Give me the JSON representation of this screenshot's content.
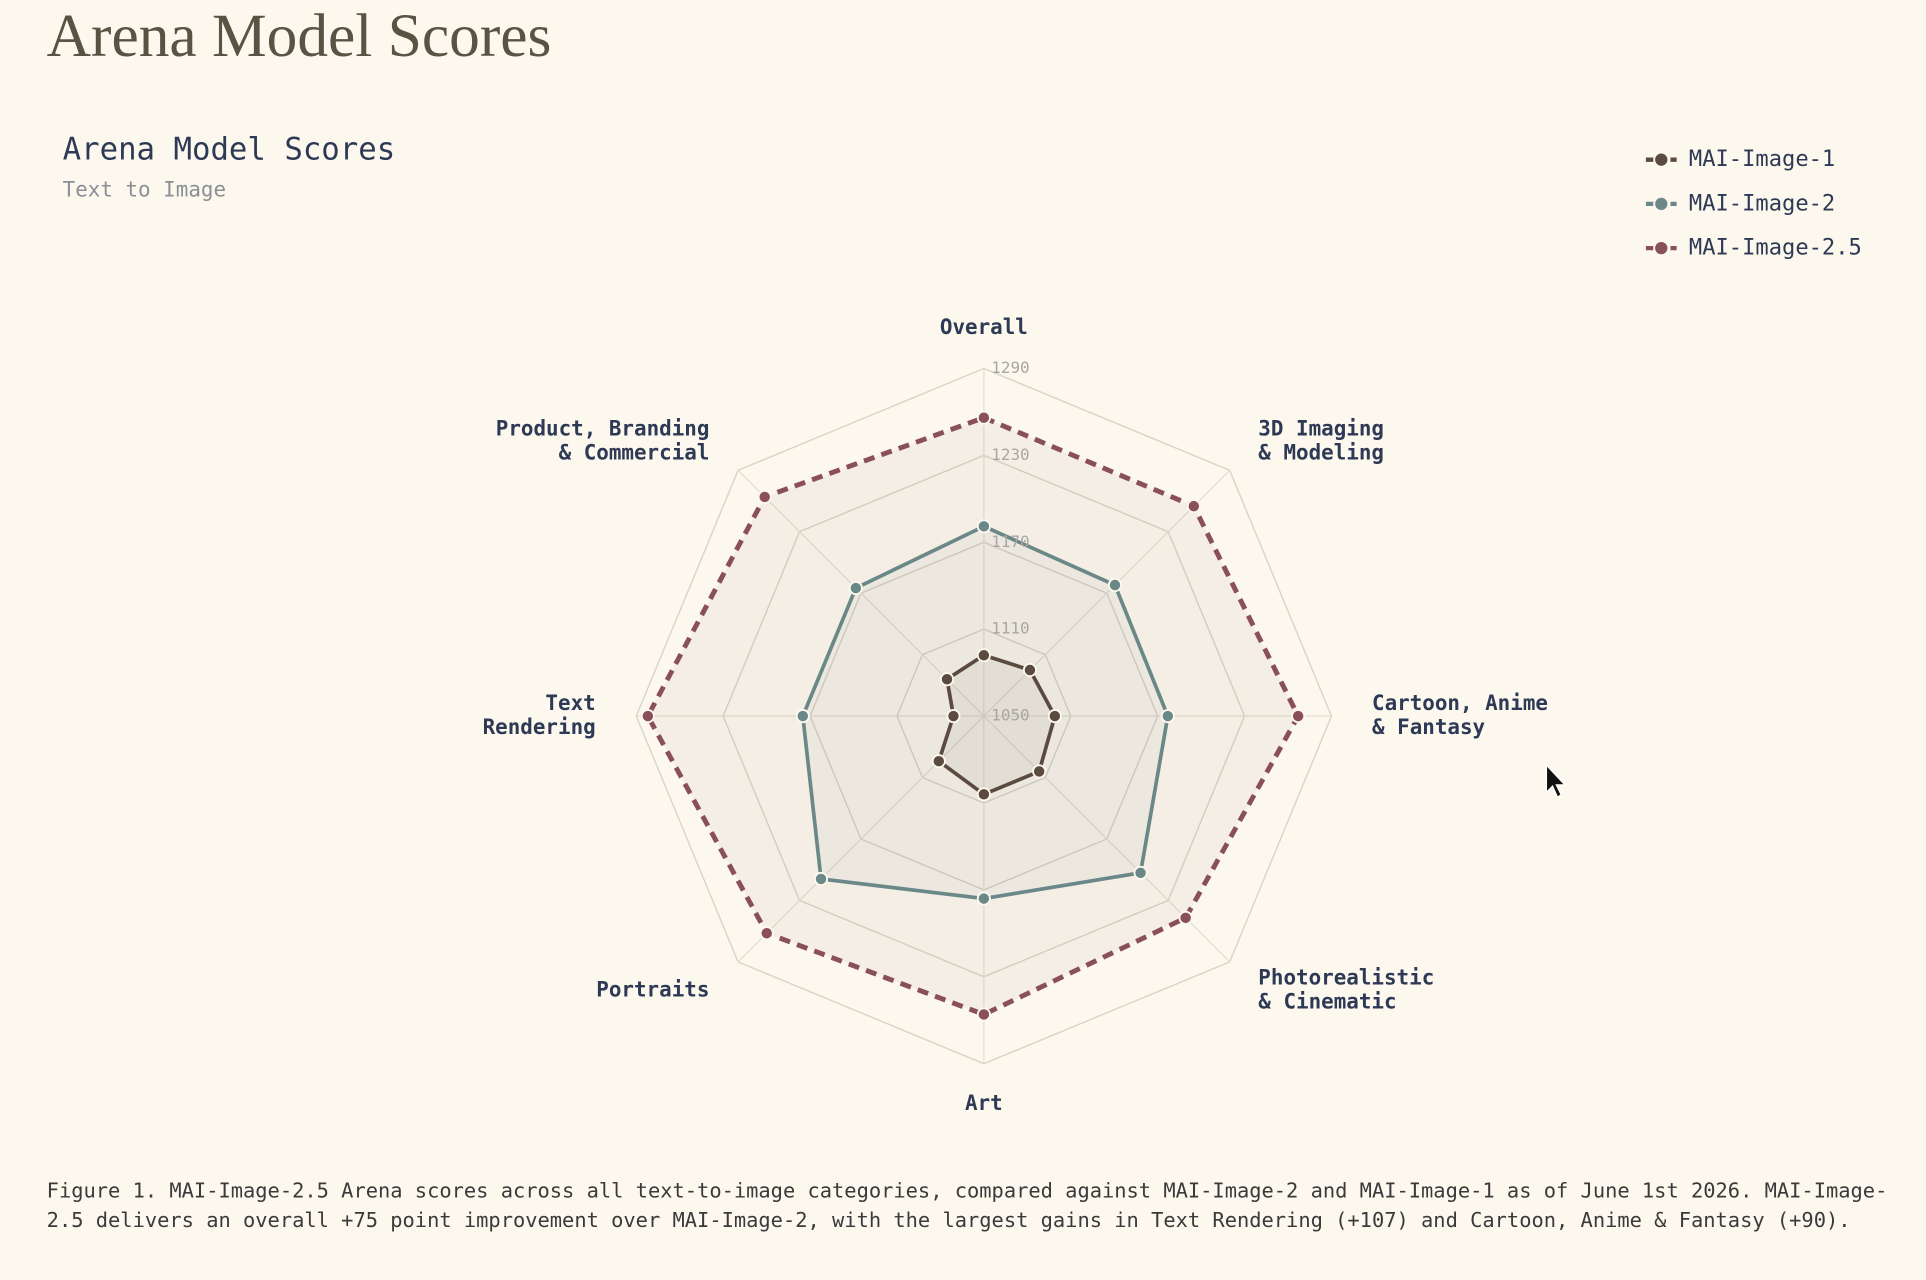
{
  "header": {
    "title": "Arena Model Scores"
  },
  "chart_data": {
    "type": "radar",
    "title": "Arena Model Scores",
    "subtitle": "Text to Image",
    "categories": [
      "Overall",
      "3D Imaging\n& Modeling",
      "Cartoon, Anime\n& Fantasy",
      "Photorealistic\n& Cinematic",
      "Art",
      "Portraits",
      "Text\nRendering",
      "Product, Branding\n& Commercial"
    ],
    "series": [
      {
        "name": "MAI-Image-1",
        "color": "#5b4a3f",
        "dashed": false,
        "values": [
          1092,
          1095,
          1099,
          1104,
          1104,
          1094,
          1071,
          1086
        ]
      },
      {
        "name": "MAI-Image-2",
        "color": "#6a8888",
        "dashed": false,
        "values": [
          1181,
          1178,
          1177,
          1203,
          1176,
          1209,
          1175,
          1175
        ]
      },
      {
        "name": "MAI-Image-2.5",
        "color": "#8a5057",
        "dashed": true,
        "values": [
          1256,
          1255,
          1267,
          1247,
          1256,
          1262,
          1282,
          1264
        ]
      }
    ],
    "ylim": [
      1050,
      1290
    ],
    "yticks": [
      1050,
      1110,
      1170,
      1230,
      1290
    ],
    "grid": true,
    "legend": "top-right"
  },
  "caption": "Figure 1. MAI-Image-2.5 Arena scores across all text-to-image categories, compared against MAI-Image-2 and MAI-Image-1 as of June 1st 2026. MAI-Image-2.5 delivers an overall +75 point improvement over MAI-Image-2, with the largest gains in Text Rendering (+107) and Cartoon, Anime & Fantasy (+90)."
}
